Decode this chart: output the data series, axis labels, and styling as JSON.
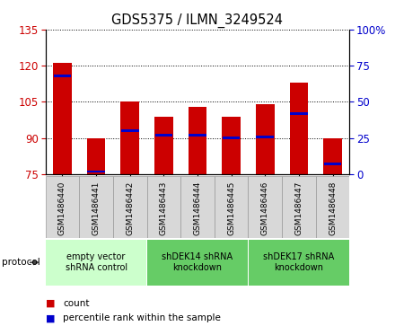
{
  "title": "GDS5375 / ILMN_3249524",
  "samples": [
    "GSM1486440",
    "GSM1486441",
    "GSM1486442",
    "GSM1486443",
    "GSM1486444",
    "GSM1486445",
    "GSM1486446",
    "GSM1486447",
    "GSM1486448"
  ],
  "counts": [
    121,
    90,
    105,
    99,
    103,
    99,
    104,
    113,
    90
  ],
  "percentiles": [
    68,
    2,
    30,
    27,
    27,
    25,
    26,
    42,
    7
  ],
  "ylim_min": 75,
  "ylim_max": 135,
  "yticks_left": [
    75,
    90,
    105,
    120,
    135
  ],
  "yticks_right": [
    0,
    25,
    50,
    75,
    100
  ],
  "bar_color": "#cc0000",
  "blue_color": "#0000cc",
  "bar_width": 0.55,
  "group_colors": [
    "#ccffcc",
    "#66cc66",
    "#66cc66"
  ],
  "groups": [
    {
      "label": "empty vector\nshRNA control",
      "start": 0,
      "end": 3
    },
    {
      "label": "shDEK14 shRNA\nknockdown",
      "start": 3,
      "end": 6
    },
    {
      "label": "shDEK17 shRNA\nknockdown",
      "start": 6,
      "end": 9
    }
  ],
  "legend_items": [
    {
      "label": "count",
      "color": "#cc0000"
    },
    {
      "label": "percentile rank within the sample",
      "color": "#0000cc"
    }
  ],
  "tick_color_left": "#cc0000",
  "tick_color_right": "#0000cc"
}
